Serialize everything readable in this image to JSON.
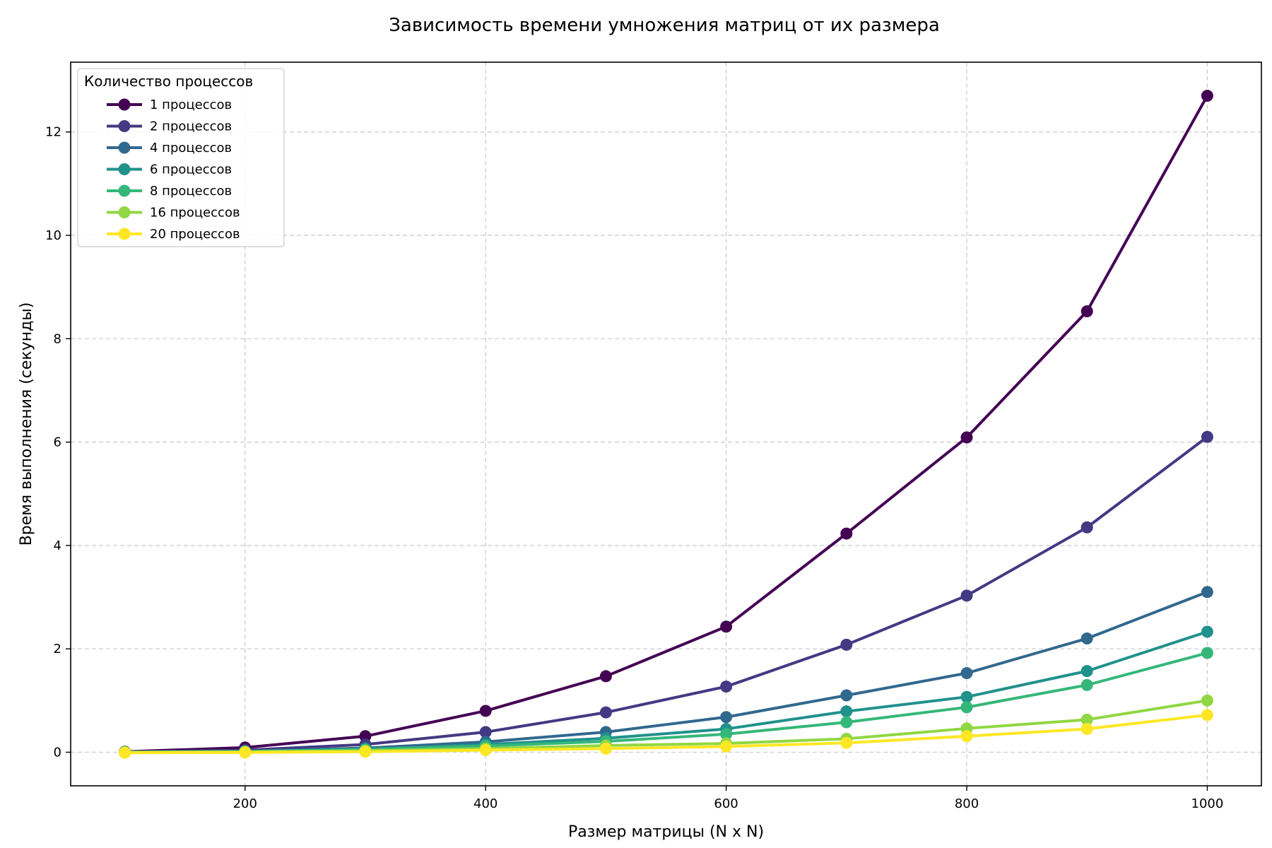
{
  "chart_data": {
    "type": "line",
    "title": "Зависимость времени умножения матриц от их размера",
    "xlabel": "Размер матрицы (N x N)",
    "ylabel": "Время выполнения (секунды)",
    "x": [
      100,
      200,
      300,
      400,
      500,
      600,
      700,
      800,
      900,
      1000
    ],
    "xlim": [
      55,
      1045
    ],
    "ylim": [
      -0.65,
      13.35
    ],
    "xticks": [
      200,
      400,
      600,
      800,
      1000
    ],
    "yticks": [
      0,
      2,
      4,
      6,
      8,
      10,
      12
    ],
    "grid": true,
    "legend": {
      "title": "Количество процессов",
      "position": "top-left"
    },
    "series": [
      {
        "name": "1 процессов",
        "color": "#440154",
        "values": [
          0.01,
          0.09,
          0.31,
          0.8,
          1.47,
          2.43,
          4.23,
          6.09,
          8.53,
          12.7
        ]
      },
      {
        "name": "2 процессов",
        "color": "#443983",
        "values": [
          0.005,
          0.04,
          0.15,
          0.39,
          0.77,
          1.27,
          2.08,
          3.03,
          4.35,
          6.1
        ]
      },
      {
        "name": "4 процессов",
        "color": "#31688e",
        "values": [
          0.003,
          0.02,
          0.08,
          0.2,
          0.39,
          0.68,
          1.1,
          1.53,
          2.2,
          3.1
        ]
      },
      {
        "name": "6 процессов",
        "color": "#21918c",
        "values": [
          0.002,
          0.015,
          0.06,
          0.15,
          0.27,
          0.45,
          0.79,
          1.07,
          1.57,
          2.33
        ]
      },
      {
        "name": "8 процессов",
        "color": "#35b779",
        "values": [
          0.002,
          0.012,
          0.05,
          0.12,
          0.21,
          0.35,
          0.58,
          0.87,
          1.3,
          1.92
        ]
      },
      {
        "name": "16 процессов",
        "color": "#90d743",
        "values": [
          0.001,
          0.008,
          0.03,
          0.07,
          0.13,
          0.17,
          0.26,
          0.46,
          0.63,
          1.0
        ]
      },
      {
        "name": "20 процессов",
        "color": "#fde725",
        "values": [
          -0.01,
          -0.005,
          0.01,
          0.04,
          0.07,
          0.11,
          0.18,
          0.31,
          0.45,
          0.72
        ]
      }
    ]
  }
}
